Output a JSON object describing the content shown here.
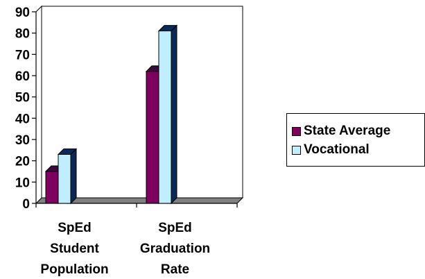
{
  "chart_data": {
    "type": "bar",
    "categories": [
      [
        "SpEd",
        "Student",
        "Population"
      ],
      [
        "SpEd",
        "Graduation",
        "Rate"
      ]
    ],
    "series": [
      {
        "name": "State Average",
        "values": [
          15,
          62
        ],
        "color": "#800060"
      },
      {
        "name": "Vocational",
        "values": [
          23,
          81
        ],
        "color": "#bfefff"
      }
    ],
    "ylim": [
      0,
      90
    ],
    "yticks": [
      0,
      10,
      20,
      30,
      40,
      50,
      60,
      70,
      80,
      90
    ],
    "grid": false,
    "style": "3d-column",
    "legend_position": "right"
  }
}
